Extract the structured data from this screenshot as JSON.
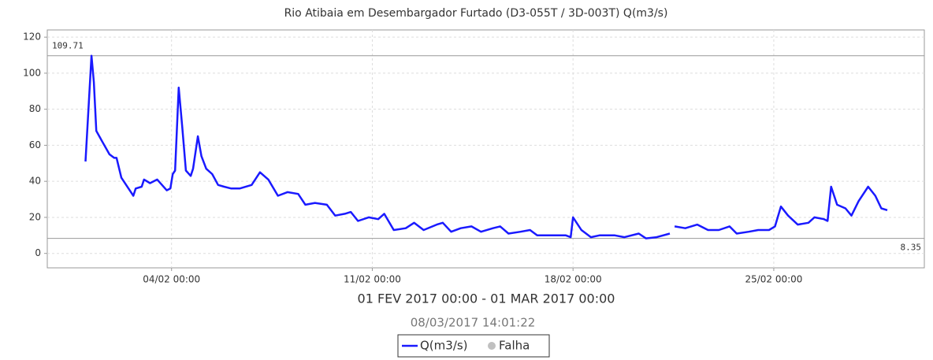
{
  "chart_data": {
    "type": "line",
    "title": "Rio Atibaia em Desembargador Furtado (D3-055T / 3D-003T) Q(m3/s)",
    "subtitle": "01 FEV 2017 00:00 - 01 MAR 2017 00:00",
    "timestamp": "08/03/2017 14:01:22",
    "x": [
      "2017-02-01 00:00",
      "2017-02-01 05:00",
      "2017-02-01 07:00",
      "2017-02-01 09:00",
      "2017-02-01 14:00",
      "2017-02-01 20:00",
      "2017-02-02 00:00",
      "2017-02-02 02:00",
      "2017-02-02 06:00",
      "2017-02-02 13:00",
      "2017-02-02 16:00",
      "2017-02-02 18:00",
      "2017-02-02 23:00",
      "2017-02-03 01:00",
      "2017-02-03 06:00",
      "2017-02-03 12:00",
      "2017-02-03 20:00",
      "2017-02-03 23:00",
      "2017-02-04 01:00",
      "2017-02-04 03:00",
      "2017-02-04 06:00",
      "2017-02-04 09:00",
      "2017-02-04 12:00",
      "2017-02-04 16:00",
      "2017-02-04 18:00",
      "2017-02-04 22:00",
      "2017-02-05 01:00",
      "2017-02-05 05:00",
      "2017-02-05 10:00",
      "2017-02-05 15:00",
      "2017-02-05 20:00",
      "2017-02-06 02:00",
      "2017-02-06 09:00",
      "2017-02-06 19:00",
      "2017-02-07 02:00",
      "2017-02-07 09:00",
      "2017-02-07 17:00",
      "2017-02-08 01:00",
      "2017-02-08 10:00",
      "2017-02-08 16:00",
      "2017-02-09 00:00",
      "2017-02-09 10:00",
      "2017-02-09 17:00",
      "2017-02-10 01:00",
      "2017-02-10 06:00",
      "2017-02-10 12:00",
      "2017-02-10 21:00",
      "2017-02-11 05:00",
      "2017-02-11 10:00",
      "2017-02-11 18:00",
      "2017-02-12 04:00",
      "2017-02-12 11:00",
      "2017-02-12 19:00",
      "2017-02-13 06:00",
      "2017-02-13 11:00",
      "2017-02-13 18:00",
      "2017-02-14 02:00",
      "2017-02-14 11:00",
      "2017-02-14 19:00",
      "2017-02-15 05:00",
      "2017-02-15 11:00",
      "2017-02-15 18:00",
      "2017-02-16 04:00",
      "2017-02-16 12:00",
      "2017-02-16 18:00",
      "2017-02-17 06:00",
      "2017-02-17 18:00",
      "2017-02-17 22:00",
      "2017-02-18 00:00",
      "2017-02-18 07:00",
      "2017-02-18 15:00",
      "2017-02-18 22:00",
      "2017-02-19 11:00",
      "2017-02-19 19:00",
      "2017-02-20 07:00",
      "2017-02-20 13:00",
      "2017-02-20 22:00",
      "2017-02-21 09:00",
      "2017-02-21 11:00",
      "2017-02-21 13:00",
      "2017-02-21 22:00",
      "2017-02-22 08:00",
      "2017-02-22 17:00",
      "2017-02-23 02:00",
      "2017-02-23 11:00",
      "2017-02-23 17:00",
      "2017-02-24 03:00",
      "2017-02-24 11:00",
      "2017-02-24 20:00",
      "2017-02-25 01:00",
      "2017-02-25 06:00",
      "2017-02-25 12:00",
      "2017-02-25 20:00",
      "2017-02-26 05:00",
      "2017-02-26 10:00",
      "2017-02-26 18:00",
      "2017-02-26 21:00",
      "2017-02-27 00:00",
      "2017-02-27 05:00",
      "2017-02-27 12:00",
      "2017-02-27 17:00",
      "2017-02-27 23:00",
      "2017-02-28 07:00",
      "2017-02-28 13:00",
      "2017-02-28 18:00",
      "2017-02-28 23:00"
    ],
    "series": [
      {
        "name": "Q(m3/s)",
        "color": "#1a1aff",
        "values": [
          51,
          109.71,
          95,
          68,
          62,
          55,
          53,
          53,
          42,
          35,
          32,
          36,
          37,
          41,
          39,
          41,
          35,
          36,
          44,
          46,
          92,
          70,
          46,
          43,
          47,
          65,
          54,
          47,
          44,
          38,
          37,
          36,
          36,
          38,
          45,
          41,
          32,
          34,
          33,
          27,
          28,
          27,
          21,
          22,
          23,
          18,
          20,
          19,
          22,
          13,
          14,
          17,
          13,
          16,
          17,
          12,
          14,
          15,
          12,
          14,
          15,
          11,
          12,
          13,
          10,
          10,
          10,
          9,
          20,
          13,
          9,
          10,
          10,
          9,
          11,
          8.35,
          9,
          11,
          null,
          15,
          14,
          16,
          13,
          13,
          15,
          11,
          12,
          13,
          13,
          15,
          26,
          21,
          16,
          17,
          20,
          19,
          18,
          37,
          27,
          25,
          21,
          29,
          37,
          32,
          25,
          24
        ]
      }
    ],
    "legend_extra": {
      "name": "Falha",
      "color": "#c0c0c0"
    },
    "hlines": [
      109.71,
      8.35
    ],
    "xlim": [
      "2017-01-30 16:00",
      "2017-03-02 06:00"
    ],
    "xticks": [
      {
        "value": "2017-02-04 00:00",
        "label": "04/02 00:00"
      },
      {
        "value": "2017-02-11 00:00",
        "label": "11/02 00:00"
      },
      {
        "value": "2017-02-18 00:00",
        "label": "18/02 00:00"
      },
      {
        "value": "2017-02-25 00:00",
        "label": "25/02 00:00"
      }
    ],
    "ylim": [
      -8,
      124
    ],
    "yticks": [
      0,
      20,
      40,
      60,
      80,
      100,
      120
    ],
    "grid": true
  }
}
